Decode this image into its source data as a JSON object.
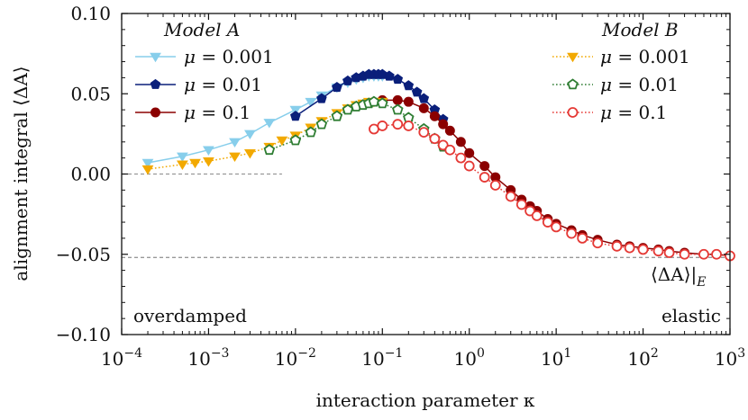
{
  "chart_data": {
    "type": "scatter",
    "title": "",
    "xlabel": "interaction parameter κ",
    "ylabel": "alignment integral ⟨ΔA⟩",
    "xscale": "log",
    "xlim": [
      0.0001,
      1000
    ],
    "ylim": [
      -0.1,
      0.1
    ],
    "x_ticks": [
      0.0001,
      0.001,
      0.01,
      0.1,
      1,
      10,
      100,
      1000
    ],
    "x_tick_labels": [
      [
        "10",
        "−4"
      ],
      [
        "10",
        "−3"
      ],
      [
        "10",
        "−2"
      ],
      [
        "10",
        "−1"
      ],
      [
        "10",
        "0"
      ],
      [
        "10",
        "1"
      ],
      [
        "10",
        "2"
      ],
      [
        "10",
        "3"
      ]
    ],
    "y_ticks": [
      -0.1,
      -0.05,
      0,
      0.05,
      0.1
    ],
    "y_tick_labels": [
      "−0.10",
      "−0.05",
      "0.00",
      "0.05",
      "0.10"
    ],
    "grid": false,
    "legend_a_title": "Model A",
    "legend_b_title": "Model B",
    "legend_placement": "top-left and top-right",
    "annotations": {
      "left": "overdamped",
      "right": "elastic",
      "elastic_limit_label": "⟨ΔA⟩|E",
      "elastic_limit_value": -0.052,
      "zero_line_value": 0.0,
      "zero_line_x_end": 0.007
    },
    "series": [
      {
        "name": "μ = 0.001",
        "model": "A",
        "color": "#87ceeb",
        "marker": "triangle-down",
        "filled": true,
        "linestyle": "solid",
        "x": [
          0.0002,
          0.0005,
          0.001,
          0.002,
          0.003,
          0.005,
          0.01,
          0.015,
          0.02,
          0.03,
          0.04,
          0.05,
          0.06,
          0.07,
          0.08,
          0.09,
          0.1
        ],
        "y": [
          0.007,
          0.011,
          0.015,
          0.02,
          0.025,
          0.032,
          0.04,
          0.045,
          0.049,
          0.054,
          0.057,
          0.059,
          0.06,
          0.061,
          0.061,
          0.061,
          0.061
        ]
      },
      {
        "name": "μ = 0.01",
        "model": "A",
        "color": "#0a1f7a",
        "marker": "pentagon",
        "filled": true,
        "linestyle": "solid",
        "x": [
          0.01,
          0.02,
          0.03,
          0.04,
          0.05,
          0.06,
          0.07,
          0.08,
          0.09,
          0.1,
          0.12,
          0.15,
          0.2,
          0.25,
          0.3,
          0.4,
          0.5
        ],
        "y": [
          0.036,
          0.047,
          0.054,
          0.058,
          0.06,
          0.061,
          0.062,
          0.062,
          0.062,
          0.062,
          0.061,
          0.059,
          0.055,
          0.051,
          0.047,
          0.04,
          0.034
        ]
      },
      {
        "name": "μ = 0.1",
        "model": "A",
        "color": "#8b0000",
        "marker": "circle",
        "filled": true,
        "linestyle": "solid",
        "x": [
          0.1,
          0.15,
          0.2,
          0.3,
          0.4,
          0.5,
          0.6,
          0.8,
          1,
          1.5,
          2,
          3,
          4,
          5,
          6,
          8,
          10,
          15,
          20,
          30,
          50,
          70,
          100,
          150,
          200,
          300,
          500,
          700,
          1000
        ],
        "y": [
          0.046,
          0.046,
          0.045,
          0.041,
          0.036,
          0.031,
          0.027,
          0.02,
          0.013,
          0.005,
          -0.002,
          -0.01,
          -0.016,
          -0.02,
          -0.023,
          -0.028,
          -0.031,
          -0.035,
          -0.038,
          -0.041,
          -0.044,
          -0.045,
          -0.046,
          -0.047,
          -0.048,
          -0.049,
          -0.05,
          -0.05,
          -0.051
        ]
      },
      {
        "name": "μ = 0.001",
        "model": "B",
        "color": "#f2a900",
        "marker": "triangle-down",
        "filled": true,
        "linestyle": "dotted",
        "x": [
          0.0002,
          0.0005,
          0.0007,
          0.001,
          0.002,
          0.003,
          0.005,
          0.007,
          0.01,
          0.015,
          0.02,
          0.03,
          0.04,
          0.05,
          0.06,
          0.07,
          0.08,
          0.1
        ],
        "y": [
          0.003,
          0.006,
          0.007,
          0.008,
          0.011,
          0.013,
          0.017,
          0.021,
          0.024,
          0.029,
          0.033,
          0.038,
          0.041,
          0.043,
          0.044,
          0.045,
          0.045,
          0.045
        ]
      },
      {
        "name": "μ = 0.01",
        "model": "B",
        "color": "#2e7d32",
        "marker": "pentagon",
        "filled": false,
        "linestyle": "dotted",
        "x": [
          0.005,
          0.01,
          0.015,
          0.02,
          0.03,
          0.04,
          0.05,
          0.06,
          0.07,
          0.08,
          0.1,
          0.15,
          0.2,
          0.3,
          0.4,
          0.5
        ],
        "y": [
          0.015,
          0.021,
          0.026,
          0.031,
          0.036,
          0.04,
          0.042,
          0.043,
          0.044,
          0.045,
          0.044,
          0.04,
          0.035,
          0.028,
          0.022,
          0.017
        ]
      },
      {
        "name": "μ = 0.1",
        "model": "B",
        "color": "#e53935",
        "marker": "circle",
        "filled": false,
        "linestyle": "dotted",
        "x": [
          0.08,
          0.1,
          0.15,
          0.2,
          0.3,
          0.4,
          0.5,
          0.6,
          0.8,
          1,
          1.5,
          2,
          3,
          4,
          5,
          6,
          8,
          10,
          15,
          20,
          30,
          50,
          70,
          100,
          150,
          200,
          300,
          500,
          700,
          1000
        ],
        "y": [
          0.028,
          0.03,
          0.031,
          0.03,
          0.026,
          0.022,
          0.018,
          0.015,
          0.01,
          0.005,
          -0.002,
          -0.007,
          -0.014,
          -0.019,
          -0.023,
          -0.026,
          -0.03,
          -0.033,
          -0.037,
          -0.04,
          -0.043,
          -0.045,
          -0.046,
          -0.047,
          -0.048,
          -0.049,
          -0.05,
          -0.05,
          -0.05,
          -0.051
        ]
      }
    ]
  }
}
